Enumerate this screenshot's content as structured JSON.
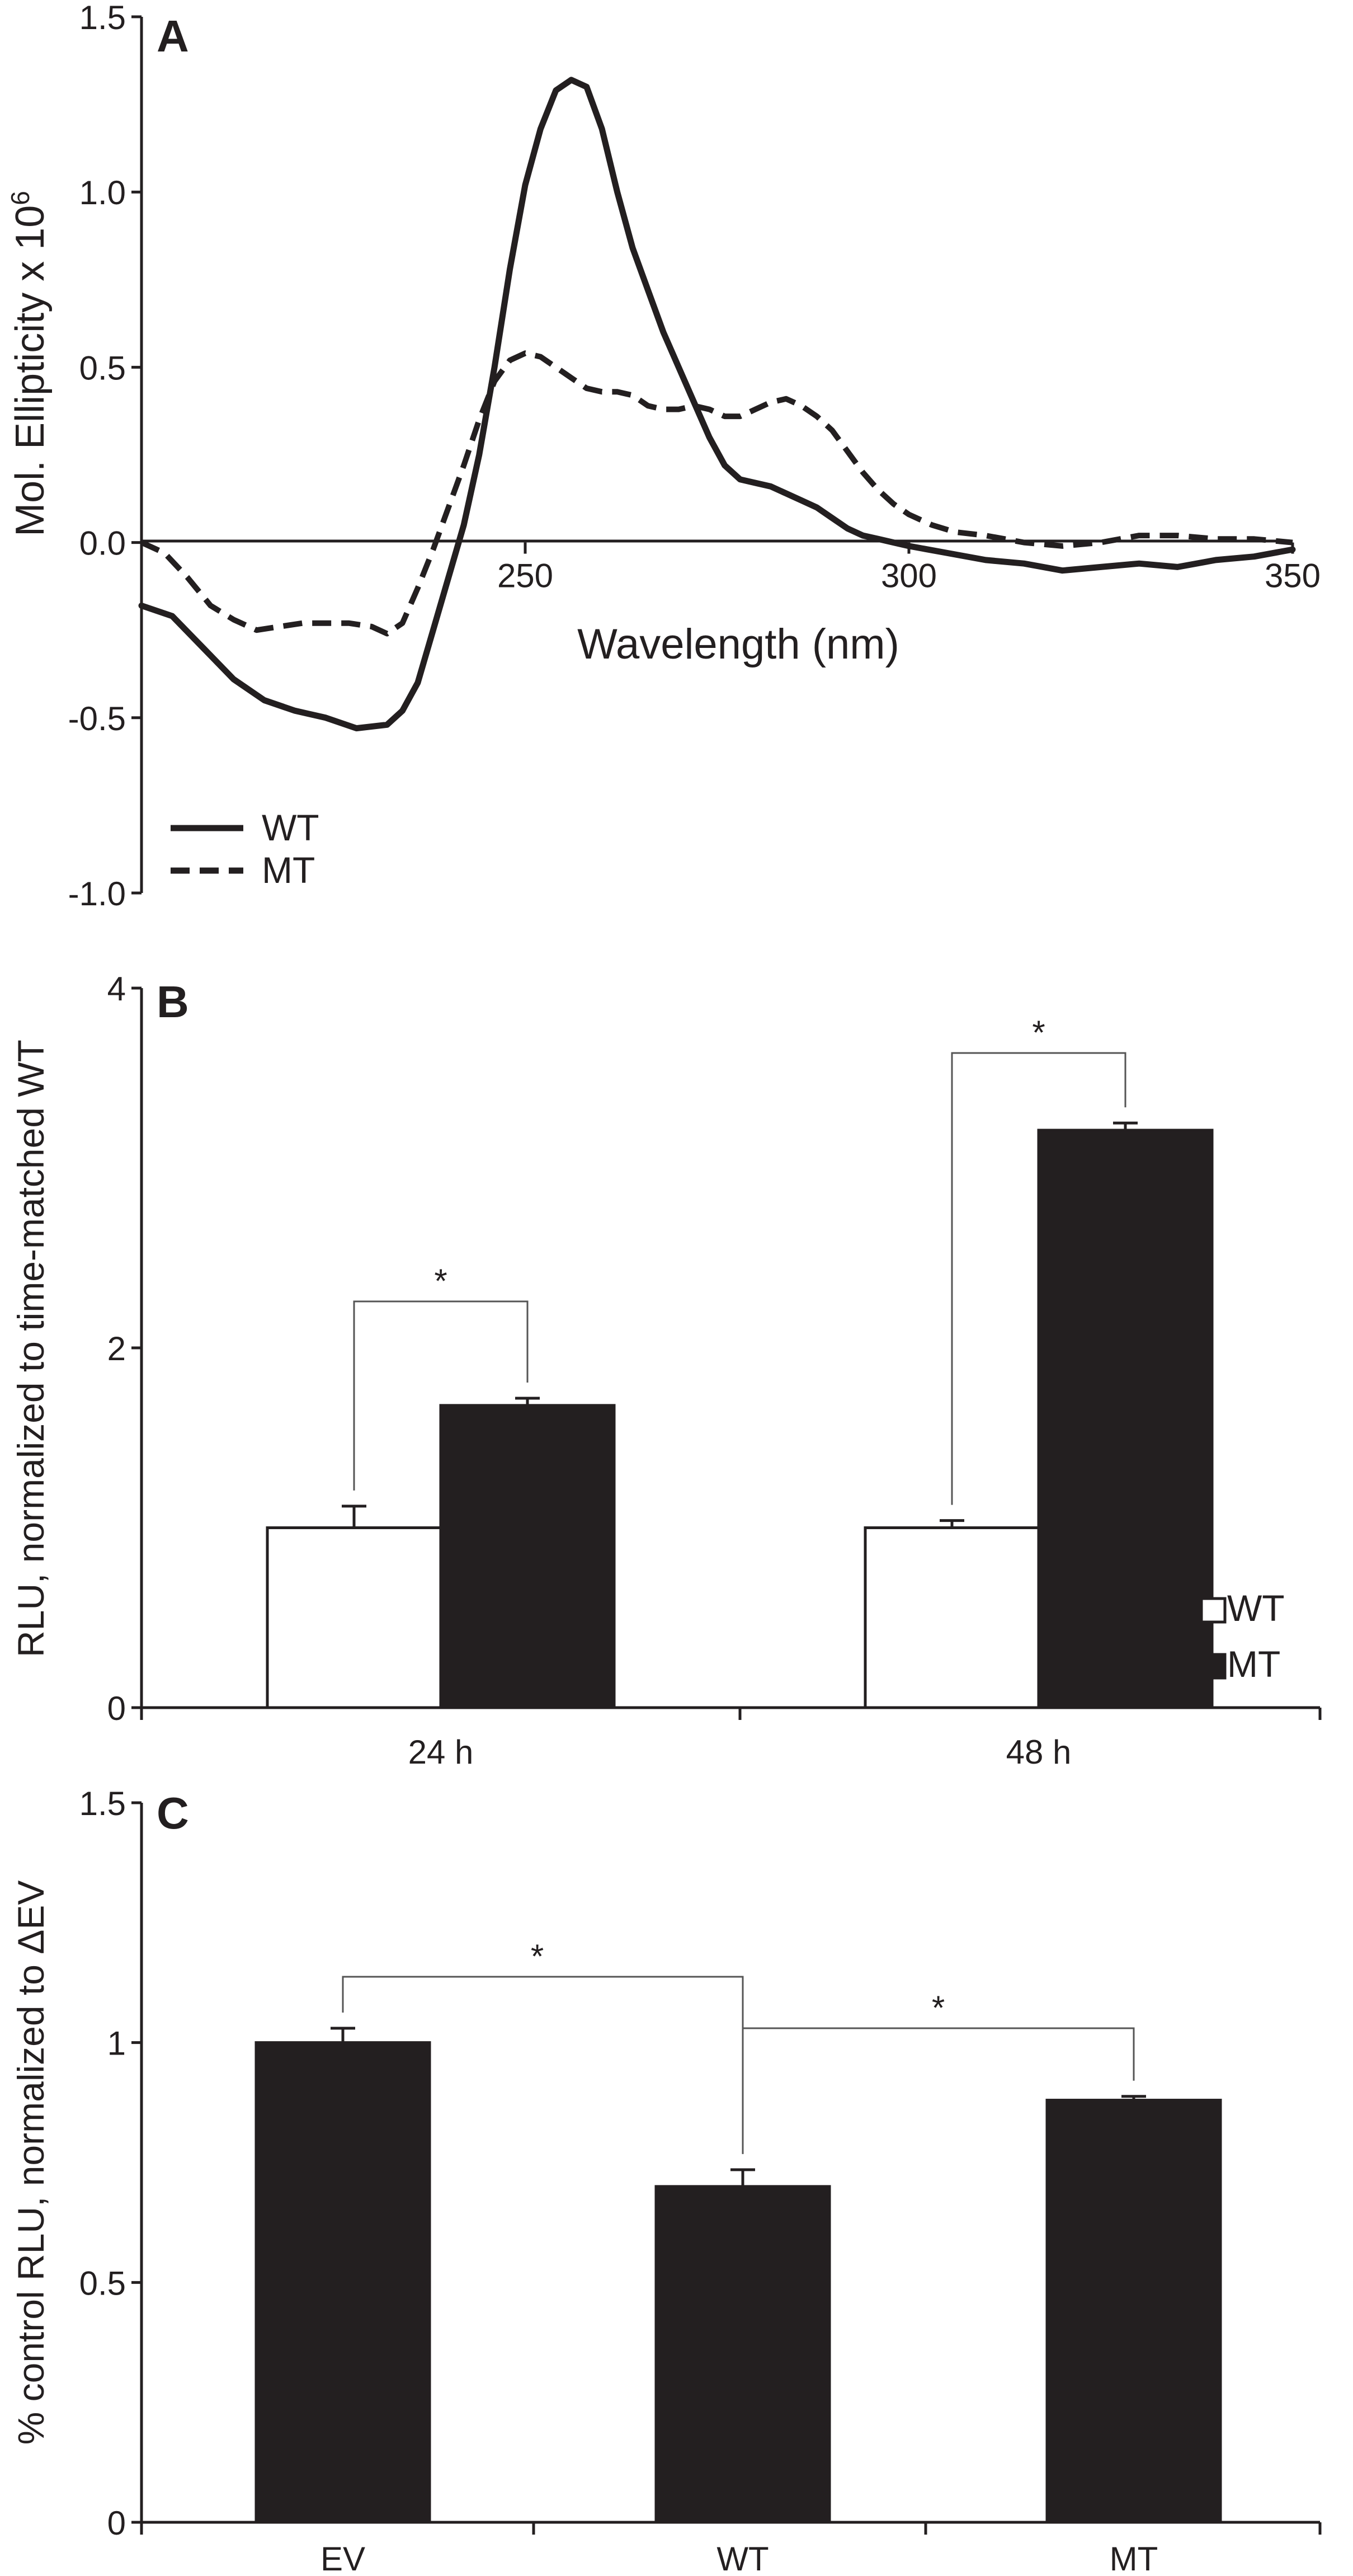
{
  "panels": {
    "a": {
      "letter": "A"
    },
    "b": {
      "letter": "B"
    },
    "c": {
      "letter": "C"
    }
  },
  "chart_data": [
    {
      "id": "A",
      "type": "line",
      "title": "",
      "xlabel": "Wavelength (nm)",
      "ylabel_main": "Mol. Ellipticity x 10",
      "ylabel_sup": "6",
      "xlim": [
        200,
        350
      ],
      "ylim": [
        -1.0,
        1.5
      ],
      "xticks": [
        250,
        300,
        350
      ],
      "xtick_labels": [
        "250",
        "300",
        "350"
      ],
      "yticks": [
        1.5,
        1.0,
        0.5,
        0.0,
        -0.5,
        -1.0
      ],
      "ytick_labels": [
        "1.5",
        "1.0",
        "0.5",
        "0.0",
        "-0.5",
        "-1.0"
      ],
      "legend_position": "bottom-left",
      "series": [
        {
          "name": "WT",
          "style": "solid",
          "x": [
            200,
            204,
            208,
            212,
            216,
            220,
            224,
            228,
            232,
            234,
            236,
            238,
            240,
            242,
            244,
            246,
            248,
            250,
            252,
            254,
            256,
            258,
            260,
            262,
            264,
            266,
            268,
            270,
            272,
            274,
            276,
            278,
            280,
            282,
            284,
            286,
            288,
            290,
            292,
            294,
            296,
            298,
            300,
            305,
            310,
            315,
            320,
            325,
            330,
            335,
            340,
            345,
            350
          ],
          "y": [
            -0.18,
            -0.21,
            -0.3,
            -0.39,
            -0.45,
            -0.48,
            -0.5,
            -0.53,
            -0.52,
            -0.48,
            -0.4,
            -0.25,
            -0.1,
            0.05,
            0.25,
            0.5,
            0.78,
            1.02,
            1.18,
            1.29,
            1.32,
            1.3,
            1.18,
            1.0,
            0.84,
            0.72,
            0.6,
            0.5,
            0.4,
            0.3,
            0.22,
            0.18,
            0.17,
            0.16,
            0.14,
            0.12,
            0.1,
            0.07,
            0.04,
            0.02,
            0.01,
            0.0,
            -0.01,
            -0.03,
            -0.05,
            -0.06,
            -0.08,
            -0.07,
            -0.06,
            -0.07,
            -0.05,
            -0.04,
            -0.02
          ]
        },
        {
          "name": "MT",
          "style": "dashed",
          "x": [
            200,
            203,
            206,
            209,
            212,
            215,
            218,
            221,
            224,
            227,
            230,
            232,
            234,
            236,
            238,
            240,
            242,
            244,
            246,
            248,
            250,
            252,
            254,
            256,
            258,
            260,
            262,
            264,
            266,
            268,
            270,
            272,
            274,
            276,
            278,
            280,
            282,
            284,
            286,
            288,
            290,
            292,
            294,
            296,
            298,
            300,
            303,
            306,
            310,
            315,
            320,
            325,
            330,
            335,
            340,
            345,
            350
          ],
          "y": [
            0.0,
            -0.03,
            -0.1,
            -0.18,
            -0.22,
            -0.25,
            -0.24,
            -0.23,
            -0.23,
            -0.23,
            -0.24,
            -0.26,
            -0.23,
            -0.13,
            -0.02,
            0.1,
            0.22,
            0.35,
            0.46,
            0.52,
            0.54,
            0.53,
            0.5,
            0.47,
            0.44,
            0.43,
            0.43,
            0.42,
            0.39,
            0.38,
            0.38,
            0.39,
            0.38,
            0.36,
            0.36,
            0.38,
            0.4,
            0.41,
            0.39,
            0.36,
            0.32,
            0.26,
            0.2,
            0.15,
            0.11,
            0.08,
            0.05,
            0.03,
            0.02,
            0.0,
            -0.01,
            0.0,
            0.02,
            0.02,
            0.01,
            0.01,
            0.0
          ]
        }
      ]
    },
    {
      "id": "B",
      "type": "bar",
      "title": "",
      "xlabel": "",
      "ylabel": "RLU, normalized to time-matched WT",
      "ylim": [
        0,
        4
      ],
      "yticks": [
        0,
        2,
        4
      ],
      "ytick_labels": [
        "0",
        "2",
        "4"
      ],
      "categories": [
        "24 h",
        "48 h"
      ],
      "legend_position": "right",
      "series": [
        {
          "name": "WT",
          "color": "#ffffff",
          "values": [
            1.0,
            1.0
          ],
          "errors": [
            0.12,
            0.04
          ]
        },
        {
          "name": "MT",
          "color": "#231f20",
          "values": [
            1.68,
            3.21
          ],
          "errors": [
            0.04,
            0.04
          ]
        }
      ],
      "significance": [
        {
          "label": "*",
          "between": [
            "24 h WT",
            "24 h MT"
          ]
        },
        {
          "label": "*",
          "between": [
            "48 h WT",
            "48 h MT"
          ]
        }
      ]
    },
    {
      "id": "C",
      "type": "bar",
      "title": "",
      "xlabel": "",
      "ylabel": "% control RLU, normalized to ΔEV",
      "ylim": [
        0,
        1.5
      ],
      "yticks": [
        0,
        0.5,
        1,
        1.5
      ],
      "ytick_labels": [
        "0",
        "0.5",
        "1",
        "1.5"
      ],
      "categories": [
        "EV",
        "WT",
        "MT"
      ],
      "series": [
        {
          "name": "RLU",
          "color": "#231f20",
          "values": [
            1.0,
            0.7,
            0.88
          ],
          "errors": [
            0.03,
            0.035,
            0.008
          ]
        }
      ],
      "significance": [
        {
          "label": "*",
          "between": [
            "EV",
            "WT"
          ]
        },
        {
          "label": "*",
          "between": [
            "WT",
            "MT"
          ]
        }
      ]
    }
  ]
}
